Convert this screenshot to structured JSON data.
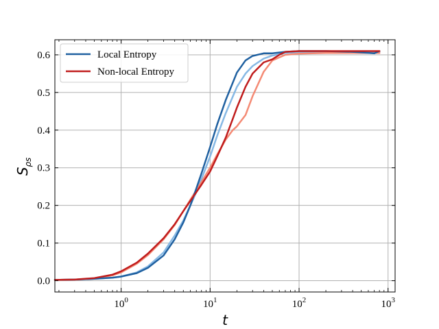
{
  "chart_data": {
    "type": "line",
    "xscale": "log",
    "xlim": [
      0.18,
      1200
    ],
    "ylim": [
      -0.03,
      0.64
    ],
    "xlabel": "t",
    "ylabel": "S",
    "ylabel_subscript": "ρs",
    "grid": true,
    "legend_placement": "top-left",
    "x_ticks": [
      {
        "value": 1,
        "base": "10",
        "exp": "0"
      },
      {
        "value": 10,
        "base": "10",
        "exp": "1"
      },
      {
        "value": 100,
        "base": "10",
        "exp": "2"
      },
      {
        "value": 1000,
        "base": "10",
        "exp": "3"
      }
    ],
    "y_ticks": [
      {
        "value": 0.0,
        "label": "0.0"
      },
      {
        "value": 0.1,
        "label": "0.1"
      },
      {
        "value": 0.2,
        "label": "0.2"
      },
      {
        "value": 0.3,
        "label": "0.3"
      },
      {
        "value": 0.4,
        "label": "0.4"
      },
      {
        "value": 0.5,
        "label": "0.5"
      },
      {
        "value": 0.6,
        "label": "0.6"
      }
    ],
    "series": [
      {
        "name": "",
        "color": "#86b8e4",
        "width": 2.5,
        "x": [
          0.18,
          0.3,
          0.5,
          0.8,
          1.0,
          1.5,
          2,
          3,
          4,
          5,
          6,
          7,
          8,
          10,
          12,
          15,
          20,
          25,
          30,
          40,
          50,
          70,
          100,
          200,
          400,
          800
        ],
        "y": [
          0.002,
          0.003,
          0.005,
          0.008,
          0.011,
          0.022,
          0.038,
          0.075,
          0.12,
          0.16,
          0.2,
          0.235,
          0.27,
          0.33,
          0.385,
          0.445,
          0.515,
          0.55,
          0.57,
          0.59,
          0.598,
          0.605,
          0.607,
          0.608,
          0.608,
          0.608
        ]
      },
      {
        "name": "",
        "color": "#f48a74",
        "width": 2.5,
        "x": [
          0.18,
          0.3,
          0.5,
          0.8,
          1.0,
          1.5,
          2,
          3,
          4,
          5,
          6,
          7,
          8,
          10,
          12,
          15,
          18,
          20,
          25,
          30,
          40,
          50,
          70,
          100,
          200,
          400,
          800
        ],
        "y": [
          0.002,
          0.003,
          0.006,
          0.014,
          0.022,
          0.045,
          0.068,
          0.11,
          0.148,
          0.185,
          0.215,
          0.24,
          0.262,
          0.3,
          0.335,
          0.375,
          0.4,
          0.41,
          0.44,
          0.49,
          0.555,
          0.585,
          0.6,
          0.603,
          0.605,
          0.605,
          0.605
        ]
      },
      {
        "name": "Local Entropy",
        "color": "#1f60a0",
        "width": 2.5,
        "x": [
          0.18,
          0.3,
          0.5,
          0.8,
          1.0,
          1.5,
          2,
          3,
          4,
          5,
          6,
          7,
          8,
          10,
          12,
          15,
          20,
          25,
          30,
          40,
          50,
          70,
          100,
          200,
          400,
          700,
          800
        ],
        "y": [
          0.002,
          0.003,
          0.005,
          0.008,
          0.011,
          0.02,
          0.034,
          0.067,
          0.11,
          0.155,
          0.2,
          0.245,
          0.285,
          0.355,
          0.415,
          0.48,
          0.553,
          0.585,
          0.597,
          0.604,
          0.604,
          0.608,
          0.61,
          0.61,
          0.608,
          0.604,
          0.61
        ]
      },
      {
        "name": "Non-local Entropy",
        "color": "#c01c1c",
        "width": 2.5,
        "x": [
          0.18,
          0.3,
          0.5,
          0.8,
          1.0,
          1.5,
          2,
          3,
          4,
          5,
          6,
          7,
          8,
          10,
          12,
          15,
          18,
          20,
          25,
          30,
          40,
          50,
          60,
          70,
          100,
          200,
          400,
          800
        ],
        "y": [
          0.002,
          0.003,
          0.007,
          0.016,
          0.025,
          0.048,
          0.072,
          0.113,
          0.15,
          0.185,
          0.212,
          0.235,
          0.255,
          0.29,
          0.33,
          0.38,
          0.43,
          0.46,
          0.515,
          0.55,
          0.58,
          0.588,
          0.6,
          0.608,
          0.61,
          0.61,
          0.61,
          0.61
        ]
      }
    ]
  }
}
